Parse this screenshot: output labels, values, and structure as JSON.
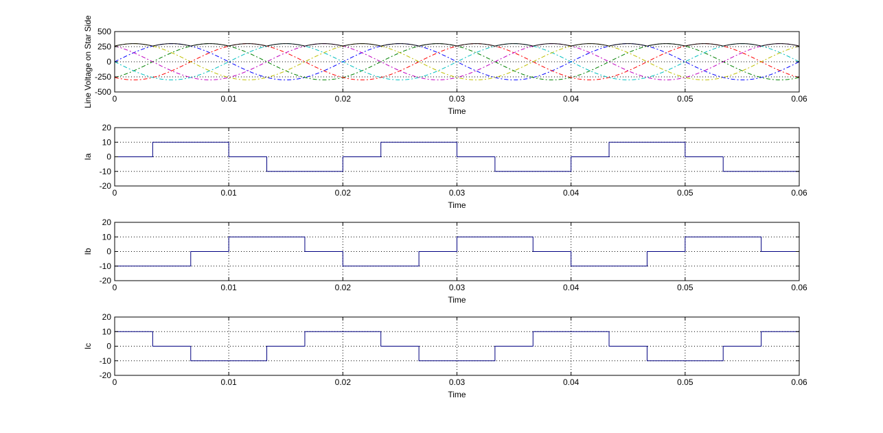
{
  "figure": {
    "background": "#ffffff",
    "grid_style": "dotted",
    "panel_count": 4
  },
  "chart_data": [
    {
      "type": "line",
      "id": "line-voltage",
      "title": "",
      "xlabel": "Time",
      "ylabel": "Line Voltage on Star Side",
      "xlim": [
        0,
        0.06
      ],
      "ylim": [
        -500,
        500
      ],
      "xticks": [
        0,
        0.01,
        0.02,
        0.03,
        0.04,
        0.05,
        0.06
      ],
      "xtick_labels": [
        "0",
        "0.01",
        "0.02",
        "0.03",
        "0.04",
        "0.05",
        "0.06"
      ],
      "yticks": [
        -500,
        -250,
        0,
        250,
        500
      ],
      "ytick_labels": [
        "-500",
        "-250",
        "0",
        "250",
        "500"
      ],
      "grid": true,
      "series": [
        {
          "kind": "sine",
          "amplitude": 300,
          "frequency_hz": 50,
          "phase_deg": 0,
          "color": "#0000ff",
          "dash": "6 3 2 3"
        },
        {
          "kind": "sine",
          "amplitude": 300,
          "frequency_hz": 50,
          "phase_deg": -60,
          "color": "#008000",
          "dash": "6 3 2 3"
        },
        {
          "kind": "sine",
          "amplitude": 300,
          "frequency_hz": 50,
          "phase_deg": -120,
          "color": "#ff0000",
          "dash": "6 3 2 3"
        },
        {
          "kind": "sine",
          "amplitude": 300,
          "frequency_hz": 50,
          "phase_deg": 180,
          "color": "#00bfbf",
          "dash": "6 3 2 3"
        },
        {
          "kind": "sine",
          "amplitude": 300,
          "frequency_hz": 50,
          "phase_deg": 120,
          "color": "#bf00bf",
          "dash": "6 3 2 3"
        },
        {
          "kind": "sine",
          "amplitude": 300,
          "frequency_hz": 50,
          "phase_deg": 60,
          "color": "#bfbf00",
          "dash": "6 3 2 3"
        },
        {
          "kind": "envelope_max",
          "amplitude": 300,
          "frequency_hz": 50,
          "pulses": 6,
          "color": "#000000",
          "dash": ""
        }
      ]
    },
    {
      "type": "line",
      "id": "ia",
      "title": "",
      "xlabel": "Time",
      "ylabel": "Ia",
      "xlim": [
        0,
        0.06
      ],
      "ylim": [
        -20,
        20
      ],
      "xticks": [
        0,
        0.01,
        0.02,
        0.03,
        0.04,
        0.05,
        0.06
      ],
      "xtick_labels": [
        "0",
        "0.01",
        "0.02",
        "0.03",
        "0.04",
        "0.05",
        "0.06"
      ],
      "yticks": [
        -20,
        -10,
        0,
        10,
        20
      ],
      "ytick_labels": [
        "-20",
        "-10",
        "0",
        "10",
        "20"
      ],
      "grid": true,
      "series": [
        {
          "kind": "step",
          "color": "#000080",
          "x": [
            0,
            0.003333,
            0.01,
            0.013333,
            0.02,
            0.023333,
            0.03,
            0.033333,
            0.04,
            0.043333,
            0.05,
            0.053333,
            0.06
          ],
          "y": [
            0,
            10,
            0,
            -10,
            0,
            10,
            0,
            -10,
            0,
            10,
            0,
            -10,
            -10
          ]
        }
      ]
    },
    {
      "type": "line",
      "id": "ib",
      "title": "",
      "xlabel": "Time",
      "ylabel": "Ib",
      "xlim": [
        0,
        0.06
      ],
      "ylim": [
        -20,
        20
      ],
      "xticks": [
        0,
        0.01,
        0.02,
        0.03,
        0.04,
        0.05,
        0.06
      ],
      "xtick_labels": [
        "0",
        "0.01",
        "0.02",
        "0.03",
        "0.04",
        "0.05",
        "0.06"
      ],
      "yticks": [
        -20,
        -10,
        0,
        10,
        20
      ],
      "ytick_labels": [
        "-20",
        "-10",
        "0",
        "10",
        "20"
      ],
      "grid": true,
      "series": [
        {
          "kind": "step",
          "color": "#000080",
          "x": [
            0,
            0.006667,
            0.01,
            0.016667,
            0.02,
            0.026667,
            0.03,
            0.036667,
            0.04,
            0.046667,
            0.05,
            0.056667,
            0.06
          ],
          "y": [
            -10,
            0,
            10,
            0,
            -10,
            0,
            10,
            0,
            -10,
            0,
            10,
            0,
            0
          ]
        }
      ]
    },
    {
      "type": "line",
      "id": "ic",
      "title": "",
      "xlabel": "Time",
      "ylabel": "Ic",
      "xlim": [
        0,
        0.06
      ],
      "ylim": [
        -20,
        20
      ],
      "xticks": [
        0,
        0.01,
        0.02,
        0.03,
        0.04,
        0.05,
        0.06
      ],
      "xtick_labels": [
        "0",
        "0.01",
        "0.02",
        "0.03",
        "0.04",
        "0.05",
        "0.06"
      ],
      "yticks": [
        -20,
        -10,
        0,
        10,
        20
      ],
      "ytick_labels": [
        "-20",
        "-10",
        "0",
        "10",
        "20"
      ],
      "grid": true,
      "series": [
        {
          "kind": "step",
          "color": "#000080",
          "x": [
            0,
            0.003333,
            0.006667,
            0.013333,
            0.016667,
            0.023333,
            0.026667,
            0.033333,
            0.036667,
            0.043333,
            0.046667,
            0.053333,
            0.056667,
            0.06
          ],
          "y": [
            10,
            0,
            -10,
            0,
            10,
            0,
            -10,
            0,
            10,
            0,
            -10,
            0,
            10,
            10
          ]
        }
      ]
    }
  ]
}
